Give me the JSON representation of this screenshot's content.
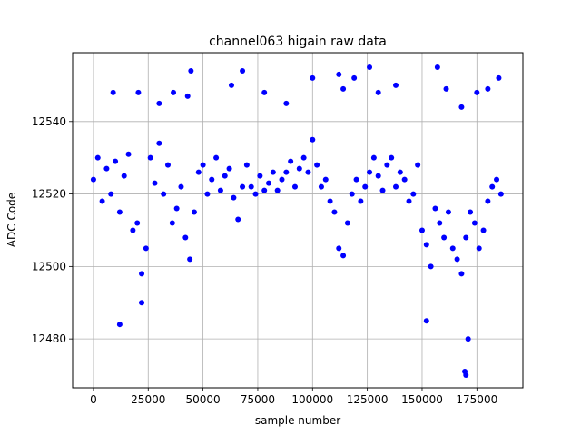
{
  "chart_data": {
    "type": "scatter",
    "title": "channel063 higain raw data",
    "xlabel": "sample number",
    "ylabel": "ADC Code",
    "xlim": [
      -9500,
      196000
    ],
    "ylim": [
      12466.5,
      12559
    ],
    "xticks": [
      0,
      25000,
      50000,
      75000,
      100000,
      125000,
      150000,
      175000
    ],
    "yticks": [
      12480,
      12500,
      12520,
      12540
    ],
    "xtick_labels": [
      "0",
      "25000",
      "50000",
      "75000",
      "100000",
      "125000",
      "150000",
      "175000"
    ],
    "ytick_labels": [
      "12480",
      "12500",
      "12520",
      "12540"
    ],
    "grid": true,
    "legend": "none",
    "color": "#0000ff",
    "marker": "circle",
    "series": [
      {
        "x": [
          0,
          2000,
          4000,
          6000,
          8000,
          10000,
          12000,
          14000,
          16000,
          18000,
          20000,
          22000,
          24000,
          26000,
          28000,
          30000,
          32000,
          34000,
          36000,
          38000,
          40000,
          42000,
          44000,
          46000,
          48000,
          50000,
          52000,
          54000,
          56000,
          58000,
          60000,
          62000,
          64000,
          66000,
          68000,
          70000,
          72000,
          74000,
          76000,
          78000,
          80000,
          82000,
          84000,
          86000,
          88000,
          90000,
          92000,
          94000,
          96000,
          98000,
          100000,
          102000,
          104000,
          106000,
          108000,
          110000,
          112000,
          114000,
          116000,
          118000,
          120000,
          122000,
          124000,
          126000,
          128000,
          130000,
          132000,
          134000,
          136000,
          138000,
          140000,
          142000,
          144000,
          146000,
          148000,
          150000,
          152000,
          154000,
          156000,
          158000,
          160000,
          162000,
          164000,
          166000,
          168000,
          170000,
          172000,
          174000,
          176000,
          178000,
          180000,
          182000,
          184000,
          186000,
          9000,
          12000,
          20500,
          22000,
          30000,
          36500,
          43000,
          44500,
          63000,
          68000,
          78000,
          88000,
          100000,
          112000,
          114000,
          119000,
          126000,
          130000,
          138000,
          152000,
          157000,
          161000,
          168000,
          169500,
          170000,
          171000,
          175000,
          180000,
          185000
        ],
        "y": [
          12524,
          12530,
          12518,
          12527,
          12520,
          12529,
          12515,
          12525,
          12531,
          12510,
          12512,
          12498,
          12505,
          12530,
          12523,
          12534,
          12520,
          12528,
          12512,
          12516,
          12522,
          12508,
          12502,
          12515,
          12526,
          12528,
          12520,
          12524,
          12530,
          12521,
          12525,
          12527,
          12519,
          12513,
          12522,
          12528,
          12522,
          12520,
          12525,
          12521,
          12523,
          12526,
          12521,
          12524,
          12526,
          12529,
          12522,
          12527,
          12530,
          12526,
          12535,
          12528,
          12522,
          12524,
          12518,
          12515,
          12505,
          12503,
          12512,
          12520,
          12524,
          12518,
          12522,
          12526,
          12530,
          12525,
          12521,
          12528,
          12530,
          12522,
          12526,
          12524,
          12518,
          12520,
          12528,
          12510,
          12506,
          12500,
          12516,
          12512,
          12508,
          12515,
          12505,
          12502,
          12498,
          12508,
          12515,
          12512,
          12505,
          12510,
          12518,
          12522,
          12524,
          12520,
          12548,
          12484,
          12548,
          12490,
          12545,
          12548,
          12547,
          12554,
          12550,
          12554,
          12548,
          12545,
          12552,
          12553,
          12549,
          12552,
          12555,
          12548,
          12550,
          12485,
          12555,
          12549,
          12544,
          12471,
          12470,
          12480,
          12548,
          12549,
          12552
        ]
      }
    ]
  }
}
